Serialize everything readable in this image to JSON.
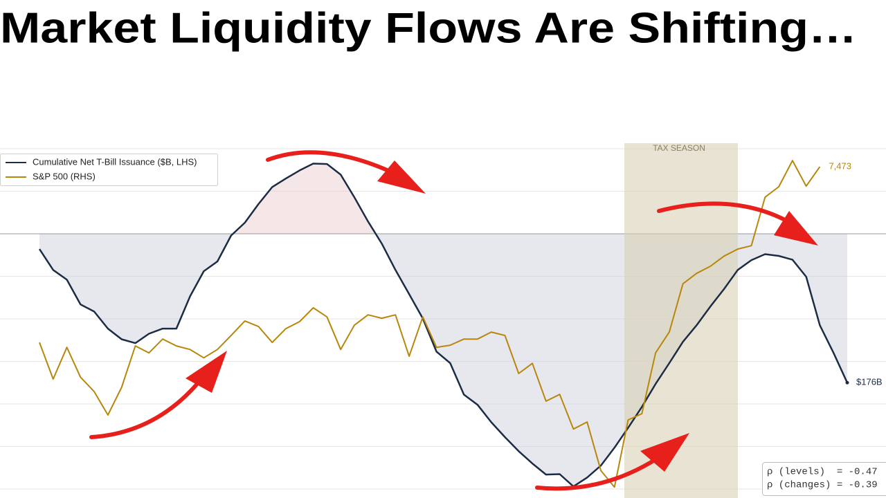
{
  "chart_data": {
    "type": "line",
    "title": "Market Liquidity Flows Are Shifting…",
    "categories": [
      null,
      null,
      null,
      null,
      null,
      null,
      null,
      null,
      null,
      null,
      null,
      null,
      null,
      null,
      null,
      null,
      null,
      null,
      null,
      null,
      null,
      null,
      null,
      null,
      null,
      null,
      null,
      null,
      null,
      null,
      null,
      null,
      null,
      null,
      null,
      null,
      null,
      null,
      null,
      null,
      null,
      null,
      null,
      null,
      null,
      null,
      null,
      null,
      null,
      null,
      null,
      null,
      null,
      null,
      null,
      null,
      null,
      null,
      null,
      null
    ],
    "series": [
      {
        "name": "Cumulative Net T-Bill Issuance ($B, LHS)",
        "color": "#1c2c45",
        "values": [
          490,
          441,
          418,
          360,
          343,
          303,
          278,
          269,
          291,
          303,
          303,
          379,
          438,
          461,
          522,
          552,
          596,
          636,
          656,
          675,
          691,
          690,
          665,
          612,
          555,
          503,
          441,
          384,
          327,
          249,
          222,
          148,
          124,
          83,
          48,
          15,
          -14,
          -40,
          -39,
          -68,
          -47,
          -19,
          23,
          70,
          119,
          173,
          222,
          272,
          311,
          355,
          396,
          441,
          464,
          478,
          474,
          465,
          425,
          311,
          246,
          176
        ],
        "value_labels": [
          null,
          null,
          null,
          null,
          null,
          null,
          null,
          null,
          null,
          null,
          null,
          null,
          null,
          null,
          null,
          null,
          null,
          null,
          null,
          null,
          null,
          null,
          null,
          null,
          null,
          null,
          null,
          null,
          null,
          null,
          null,
          null,
          null,
          null,
          null,
          null,
          null,
          null,
          null,
          null,
          null,
          null,
          null,
          null,
          null,
          null,
          null,
          null,
          null,
          null,
          null,
          null,
          null,
          null,
          null,
          null,
          null,
          null,
          null,
          "$176B"
        ]
      },
      {
        "name": "S&P 500 (RHS)",
        "color": "#b8860b",
        "axis": "y2",
        "values": [
          6647,
          6475,
          6624,
          6484,
          6416,
          6306,
          6436,
          6631,
          6598,
          6663,
          6631,
          6614,
          6575,
          6614,
          6680,
          6748,
          6722,
          6647,
          6712,
          6745,
          6810,
          6767,
          6614,
          6728,
          6777,
          6761,
          6777,
          6582,
          6767,
          6624,
          6634,
          6663,
          6663,
          6696,
          6680,
          6501,
          6549,
          6371,
          6403,
          6240,
          6273,
          6045,
          5967,
          6283,
          6312,
          6598,
          6696,
          6923,
          6972,
          7005,
          7053,
          7086,
          7102,
          7330,
          7379,
          7502,
          7382,
          7473,
          null,
          null
        ],
        "value_labels": [
          null,
          null,
          null,
          null,
          null,
          null,
          null,
          null,
          null,
          null,
          null,
          null,
          null,
          null,
          null,
          null,
          null,
          null,
          null,
          null,
          null,
          null,
          null,
          null,
          null,
          null,
          null,
          null,
          null,
          null,
          null,
          null,
          null,
          null,
          null,
          null,
          null,
          null,
          null,
          null,
          null,
          null,
          null,
          null,
          null,
          null,
          null,
          null,
          null,
          null,
          null,
          null,
          null,
          null,
          null,
          null,
          null,
          "7,473",
          null,
          null
        ]
      }
    ],
    "ylim": [
      -74,
      726
    ],
    "y2lim": [
      5958,
      7558
    ],
    "grid_values": [
      -74,
      26,
      126,
      226,
      326,
      426,
      626,
      726
    ],
    "reference_line": 526,
    "shaded_band_label": "TAX SEASON",
    "stats": [
      "ρ (levels)  = -0.47",
      "ρ (changes) = -0.39"
    ]
  }
}
